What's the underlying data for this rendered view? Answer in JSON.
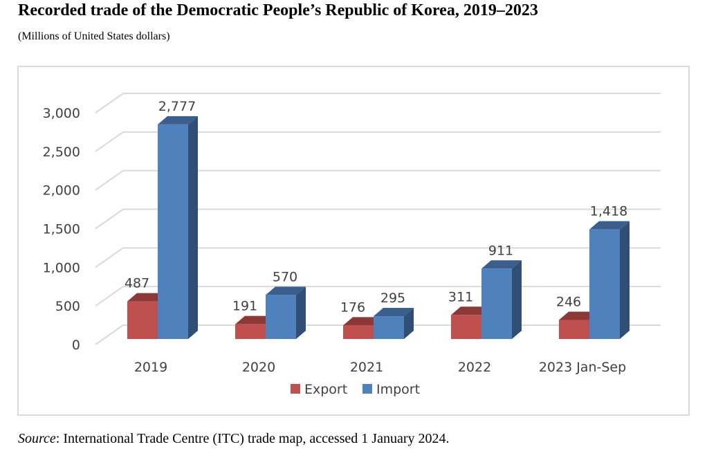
{
  "header": {
    "title": "Recorded trade of the Democratic People’s Republic of Korea, 2019–2023",
    "subtitle": "(Millions of United States dollars)"
  },
  "footer": {
    "source_label": "Source",
    "source_text": ": International Trade Centre (ITC) trade map, accessed 1 January 2024."
  },
  "chart_data": {
    "type": "bar",
    "style": "3d-clustered-column",
    "title": "",
    "xlabel": "",
    "ylabel": "",
    "categories": [
      "2019",
      "2020",
      "2021",
      "2022",
      "2023 Jan-Sep"
    ],
    "series": [
      {
        "name": "Export",
        "color": "#c0504d",
        "values": [
          487,
          191,
          176,
          311,
          246
        ],
        "labels": [
          "487",
          "191",
          "176",
          "311",
          "246"
        ]
      },
      {
        "name": "Import",
        "color": "#4f81bd",
        "values": [
          2777,
          570,
          295,
          911,
          1418
        ],
        "labels": [
          "2,777",
          "570",
          "295",
          "911",
          "1,418"
        ]
      }
    ],
    "ylim": [
      0,
      3000
    ],
    "yticks": [
      0,
      500,
      1000,
      1500,
      2000,
      2500,
      3000
    ],
    "ytick_labels": [
      "0",
      "500",
      "1,000",
      "1,500",
      "2,000",
      "2,500",
      "3,000"
    ],
    "grid": true,
    "legend": "bottom",
    "data_labels": true
  }
}
